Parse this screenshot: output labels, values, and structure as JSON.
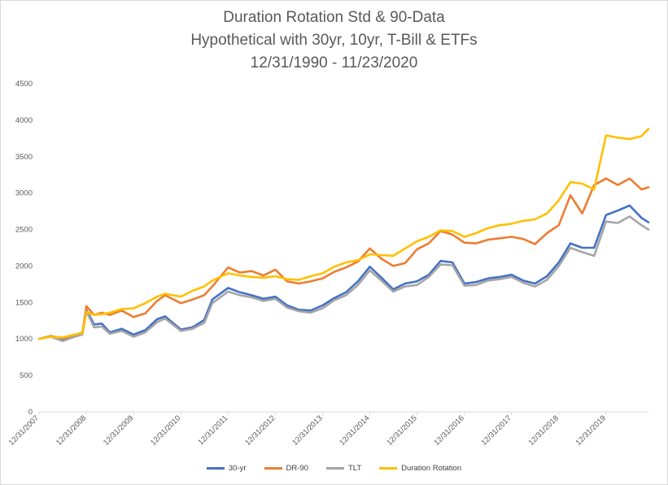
{
  "chart_data": {
    "type": "line",
    "title": [
      "Duration Rotation Std & 90-Data",
      "Hypothetical with 30yr, 10yr, T-Bill & ETFs",
      "12/31/1990 - 11/23/2020"
    ],
    "xlabel": "",
    "ylabel": "",
    "x_range": [
      "12/31/2007",
      "11/23/2020"
    ],
    "x_ticks": [
      "12/31/2007",
      "12/31/2008",
      "12/31/2009",
      "12/31/2010",
      "12/31/2011",
      "12/31/2012",
      "12/31/2013",
      "12/31/2014",
      "12/31/2015",
      "12/31/2016",
      "12/31/2017",
      "12/31/2018",
      "12/31/2019"
    ],
    "y_ticks": [
      0,
      500,
      1000,
      1500,
      2000,
      2500,
      3000,
      3500,
      4000,
      4500
    ],
    "ylim": [
      0,
      4500
    ],
    "grid": false,
    "legend_position": "bottom",
    "series": [
      {
        "name": "30-yr",
        "color": "#4472C4",
        "points": [
          [
            "12/31/2007",
            1000
          ],
          [
            "3/31/2008",
            1040
          ],
          [
            "6/30/2008",
            990
          ],
          [
            "9/30/2008",
            1040
          ],
          [
            "11/30/2008",
            1070
          ],
          [
            "12/31/2008",
            1400
          ],
          [
            "2/28/2009",
            1200
          ],
          [
            "4/30/2009",
            1210
          ],
          [
            "6/30/2009",
            1090
          ],
          [
            "9/30/2009",
            1140
          ],
          [
            "12/31/2009",
            1060
          ],
          [
            "3/31/2010",
            1120
          ],
          [
            "6/30/2010",
            1270
          ],
          [
            "8/31/2010",
            1310
          ],
          [
            "12/31/2010",
            1130
          ],
          [
            "3/31/2011",
            1160
          ],
          [
            "6/30/2011",
            1260
          ],
          [
            "8/31/2011",
            1540
          ],
          [
            "12/31/2011",
            1700
          ],
          [
            "3/31/2012",
            1640
          ],
          [
            "6/30/2012",
            1600
          ],
          [
            "9/30/2012",
            1550
          ],
          [
            "12/31/2012",
            1580
          ],
          [
            "3/31/2013",
            1460
          ],
          [
            "6/30/2013",
            1400
          ],
          [
            "9/30/2013",
            1390
          ],
          [
            "12/31/2013",
            1460
          ],
          [
            "3/31/2014",
            1560
          ],
          [
            "6/30/2014",
            1640
          ],
          [
            "9/30/2014",
            1790
          ],
          [
            "12/31/2014",
            1990
          ],
          [
            "3/31/2015",
            1840
          ],
          [
            "6/30/2015",
            1680
          ],
          [
            "9/30/2015",
            1760
          ],
          [
            "12/31/2015",
            1790
          ],
          [
            "3/31/2016",
            1880
          ],
          [
            "6/30/2016",
            2070
          ],
          [
            "9/30/2016",
            2050
          ],
          [
            "12/31/2016",
            1760
          ],
          [
            "3/31/2017",
            1780
          ],
          [
            "6/30/2017",
            1830
          ],
          [
            "9/30/2017",
            1850
          ],
          [
            "12/31/2017",
            1880
          ],
          [
            "3/31/2018",
            1800
          ],
          [
            "6/30/2018",
            1760
          ],
          [
            "9/30/2018",
            1860
          ],
          [
            "12/31/2018",
            2050
          ],
          [
            "3/31/2019",
            2310
          ],
          [
            "6/30/2019",
            2250
          ],
          [
            "9/30/2019",
            2250
          ],
          [
            "12/31/2019",
            2700
          ],
          [
            "3/31/2020",
            2760
          ],
          [
            "6/30/2020",
            2830
          ],
          [
            "9/30/2020",
            2660
          ],
          [
            "11/23/2020",
            2600
          ]
        ]
      },
      {
        "name": "DR-90",
        "color": "#ED7D31",
        "points": [
          [
            "12/31/2007",
            1000
          ],
          [
            "3/31/2008",
            1040
          ],
          [
            "6/30/2008",
            1010
          ],
          [
            "9/30/2008",
            1050
          ],
          [
            "11/30/2008",
            1090
          ],
          [
            "12/31/2008",
            1450
          ],
          [
            "2/28/2009",
            1330
          ],
          [
            "4/30/2009",
            1360
          ],
          [
            "6/30/2009",
            1330
          ],
          [
            "9/30/2009",
            1390
          ],
          [
            "12/31/2009",
            1300
          ],
          [
            "3/31/2010",
            1350
          ],
          [
            "6/30/2010",
            1520
          ],
          [
            "8/31/2010",
            1600
          ],
          [
            "12/31/2010",
            1490
          ],
          [
            "3/31/2011",
            1540
          ],
          [
            "6/30/2011",
            1600
          ],
          [
            "8/31/2011",
            1720
          ],
          [
            "12/31/2011",
            1980
          ],
          [
            "3/31/2012",
            1910
          ],
          [
            "6/30/2012",
            1930
          ],
          [
            "9/30/2012",
            1870
          ],
          [
            "12/31/2012",
            1950
          ],
          [
            "3/31/2013",
            1790
          ],
          [
            "6/30/2013",
            1760
          ],
          [
            "9/30/2013",
            1790
          ],
          [
            "12/31/2013",
            1830
          ],
          [
            "3/31/2014",
            1920
          ],
          [
            "6/30/2014",
            1980
          ],
          [
            "9/30/2014",
            2060
          ],
          [
            "12/31/2014",
            2240
          ],
          [
            "3/31/2015",
            2100
          ],
          [
            "6/30/2015",
            2000
          ],
          [
            "9/30/2015",
            2040
          ],
          [
            "12/31/2015",
            2230
          ],
          [
            "3/31/2016",
            2310
          ],
          [
            "6/30/2016",
            2480
          ],
          [
            "9/30/2016",
            2430
          ],
          [
            "12/31/2016",
            2320
          ],
          [
            "3/31/2017",
            2310
          ],
          [
            "6/30/2017",
            2360
          ],
          [
            "9/30/2017",
            2380
          ],
          [
            "12/31/2017",
            2400
          ],
          [
            "3/31/2018",
            2370
          ],
          [
            "6/30/2018",
            2300
          ],
          [
            "9/30/2018",
            2450
          ],
          [
            "12/31/2018",
            2560
          ],
          [
            "3/31/2019",
            2970
          ],
          [
            "6/30/2019",
            2720
          ],
          [
            "9/30/2019",
            3110
          ],
          [
            "12/31/2019",
            3200
          ],
          [
            "3/31/2020",
            3110
          ],
          [
            "6/30/2020",
            3200
          ],
          [
            "9/30/2020",
            3050
          ],
          [
            "11/23/2020",
            3080
          ]
        ]
      },
      {
        "name": "TLT",
        "color": "#A5A5A5",
        "points": [
          [
            "12/31/2007",
            1000
          ],
          [
            "3/31/2008",
            1030
          ],
          [
            "6/30/2008",
            970
          ],
          [
            "9/30/2008",
            1030
          ],
          [
            "11/30/2008",
            1060
          ],
          [
            "12/31/2008",
            1380
          ],
          [
            "2/28/2009",
            1160
          ],
          [
            "4/30/2009",
            1170
          ],
          [
            "6/30/2009",
            1070
          ],
          [
            "9/30/2009",
            1110
          ],
          [
            "12/31/2009",
            1030
          ],
          [
            "3/31/2010",
            1090
          ],
          [
            "6/30/2010",
            1230
          ],
          [
            "8/31/2010",
            1280
          ],
          [
            "12/31/2010",
            1110
          ],
          [
            "3/31/2011",
            1140
          ],
          [
            "6/30/2011",
            1220
          ],
          [
            "8/31/2011",
            1490
          ],
          [
            "12/31/2011",
            1650
          ],
          [
            "3/31/2012",
            1600
          ],
          [
            "6/30/2012",
            1570
          ],
          [
            "9/30/2012",
            1520
          ],
          [
            "12/31/2012",
            1550
          ],
          [
            "3/31/2013",
            1430
          ],
          [
            "6/30/2013",
            1380
          ],
          [
            "9/30/2013",
            1360
          ],
          [
            "12/31/2013",
            1420
          ],
          [
            "3/31/2014",
            1530
          ],
          [
            "6/30/2014",
            1600
          ],
          [
            "9/30/2014",
            1740
          ],
          [
            "12/31/2014",
            1940
          ],
          [
            "3/31/2015",
            1800
          ],
          [
            "6/30/2015",
            1650
          ],
          [
            "9/30/2015",
            1720
          ],
          [
            "12/31/2015",
            1740
          ],
          [
            "3/31/2016",
            1850
          ],
          [
            "6/30/2016",
            2020
          ],
          [
            "9/30/2016",
            2010
          ],
          [
            "12/31/2016",
            1730
          ],
          [
            "3/31/2017",
            1740
          ],
          [
            "6/30/2017",
            1800
          ],
          [
            "9/30/2017",
            1820
          ],
          [
            "12/31/2017",
            1850
          ],
          [
            "3/31/2018",
            1770
          ],
          [
            "6/30/2018",
            1720
          ],
          [
            "9/30/2018",
            1810
          ],
          [
            "12/31/2018",
            2000
          ],
          [
            "3/31/2019",
            2250
          ],
          [
            "6/30/2019",
            2190
          ],
          [
            "9/30/2019",
            2140
          ],
          [
            "12/31/2019",
            2610
          ],
          [
            "3/31/2020",
            2590
          ],
          [
            "6/30/2020",
            2680
          ],
          [
            "9/30/2020",
            2560
          ],
          [
            "11/23/2020",
            2500
          ]
        ]
      },
      {
        "name": "Duration Rotation",
        "color": "#FFC000",
        "points": [
          [
            "12/31/2007",
            1000
          ],
          [
            "3/31/2008",
            1030
          ],
          [
            "6/30/2008",
            1020
          ],
          [
            "9/30/2008",
            1060
          ],
          [
            "11/30/2008",
            1080
          ],
          [
            "12/31/2008",
            1370
          ],
          [
            "2/28/2009",
            1330
          ],
          [
            "4/30/2009",
            1340
          ],
          [
            "6/30/2009",
            1360
          ],
          [
            "9/30/2009",
            1410
          ],
          [
            "12/31/2009",
            1420
          ],
          [
            "3/31/2010",
            1490
          ],
          [
            "6/30/2010",
            1580
          ],
          [
            "8/31/2010",
            1620
          ],
          [
            "12/31/2010",
            1580
          ],
          [
            "3/31/2011",
            1660
          ],
          [
            "6/30/2011",
            1720
          ],
          [
            "8/31/2011",
            1800
          ],
          [
            "12/31/2011",
            1900
          ],
          [
            "3/31/2012",
            1870
          ],
          [
            "6/30/2012",
            1850
          ],
          [
            "9/30/2012",
            1840
          ],
          [
            "12/31/2012",
            1860
          ],
          [
            "3/31/2013",
            1820
          ],
          [
            "6/30/2013",
            1810
          ],
          [
            "9/30/2013",
            1860
          ],
          [
            "12/31/2013",
            1900
          ],
          [
            "3/31/2014",
            1990
          ],
          [
            "6/30/2014",
            2050
          ],
          [
            "9/30/2014",
            2080
          ],
          [
            "12/31/2014",
            2160
          ],
          [
            "3/31/2015",
            2150
          ],
          [
            "6/30/2015",
            2140
          ],
          [
            "9/30/2015",
            2240
          ],
          [
            "12/31/2015",
            2340
          ],
          [
            "3/31/2016",
            2400
          ],
          [
            "6/30/2016",
            2490
          ],
          [
            "9/30/2016",
            2480
          ],
          [
            "12/31/2016",
            2400
          ],
          [
            "3/31/2017",
            2450
          ],
          [
            "6/30/2017",
            2520
          ],
          [
            "9/30/2017",
            2560
          ],
          [
            "12/31/2017",
            2580
          ],
          [
            "3/31/2018",
            2620
          ],
          [
            "6/30/2018",
            2640
          ],
          [
            "9/30/2018",
            2720
          ],
          [
            "12/31/2018",
            2900
          ],
          [
            "3/31/2019",
            3150
          ],
          [
            "6/30/2019",
            3130
          ],
          [
            "9/30/2019",
            3050
          ],
          [
            "12/31/2019",
            3790
          ],
          [
            "3/31/2020",
            3760
          ],
          [
            "6/30/2020",
            3740
          ],
          [
            "9/30/2020",
            3780
          ],
          [
            "11/23/2020",
            3880
          ]
        ]
      }
    ]
  }
}
